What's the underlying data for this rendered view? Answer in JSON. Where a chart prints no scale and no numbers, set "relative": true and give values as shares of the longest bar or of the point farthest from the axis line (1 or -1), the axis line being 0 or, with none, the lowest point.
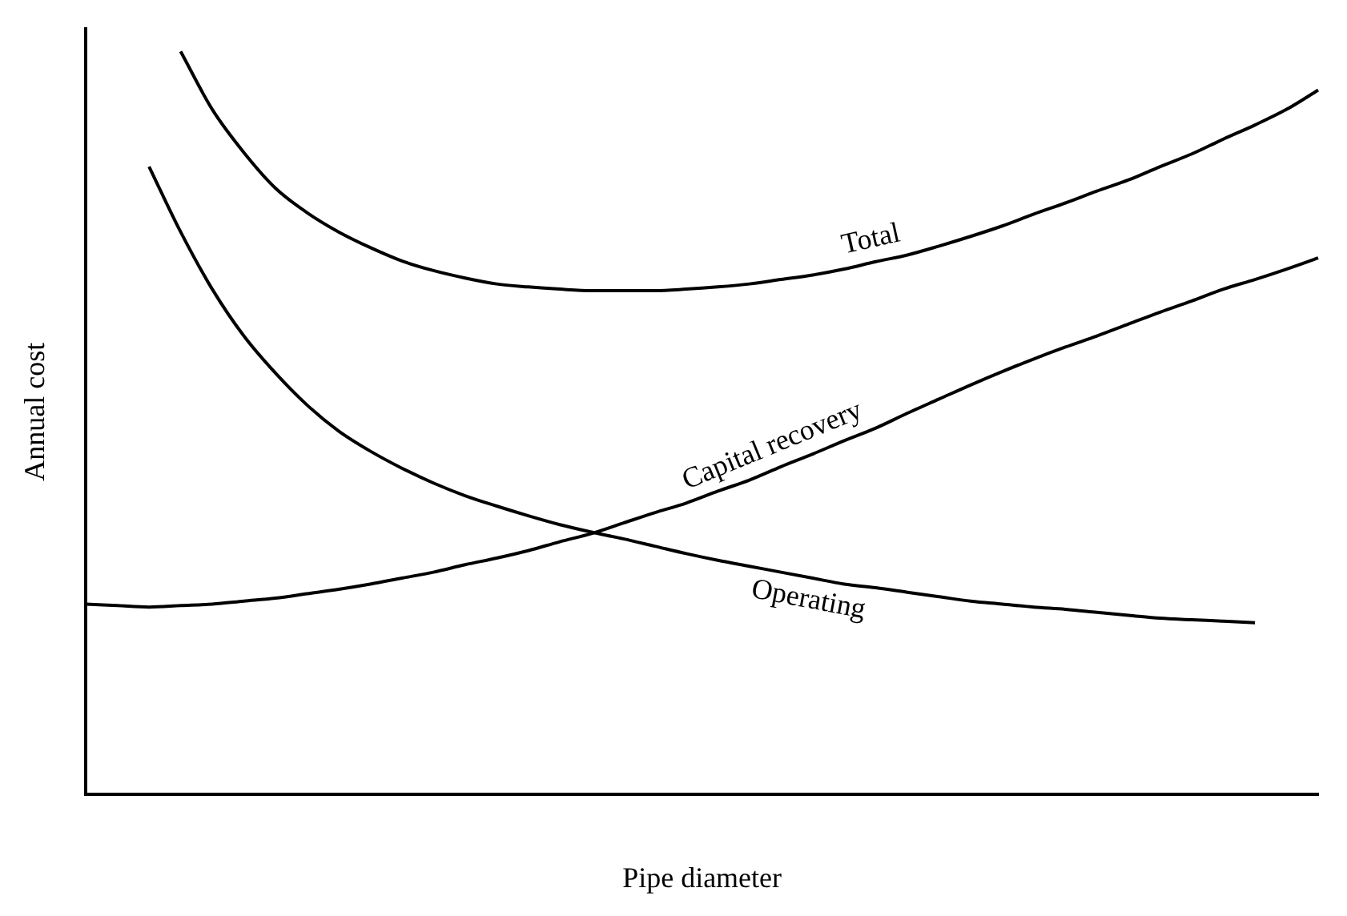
{
  "chart_data": {
    "type": "line",
    "xlabel": "Pipe diameter",
    "ylabel": "Annual cost",
    "relative": true,
    "grid": false,
    "legend": false,
    "marker": "none",
    "line_style": "solid",
    "categories": [
      null,
      null,
      null,
      null,
      null,
      null,
      null,
      null,
      null,
      null,
      null,
      null,
      null,
      null,
      null,
      null,
      null,
      null,
      null,
      null,
      null,
      null,
      null,
      null,
      null,
      null,
      null,
      null,
      null,
      null,
      null,
      null,
      null,
      null,
      null,
      null,
      null,
      null,
      null,
      null
    ],
    "series": [
      {
        "name": "Total",
        "color": "#000000",
        "values": [
          null,
          null,
          null,
          1.0,
          0.922,
          0.864,
          0.816,
          0.783,
          0.757,
          0.736,
          0.718,
          0.705,
          0.695,
          0.687,
          0.683,
          0.68,
          0.678,
          0.678,
          0.678,
          0.68,
          0.683,
          0.687,
          0.693,
          0.699,
          0.707,
          0.717,
          0.726,
          0.738,
          0.751,
          0.765,
          0.781,
          0.796,
          0.812,
          0.827,
          0.845,
          0.862,
          0.882,
          0.901,
          0.922,
          0.948
        ]
      },
      {
        "name": "Capital recovery",
        "color": "#000000",
        "values": [
          0.256,
          0.254,
          0.252,
          0.254,
          0.256,
          0.26,
          0.264,
          0.27,
          0.276,
          0.283,
          0.291,
          0.299,
          0.309,
          0.318,
          0.328,
          0.34,
          0.351,
          0.365,
          0.379,
          0.392,
          0.408,
          0.423,
          0.441,
          0.458,
          0.476,
          0.493,
          0.513,
          0.532,
          0.551,
          0.569,
          0.586,
          0.602,
          0.617,
          0.633,
          0.649,
          0.664,
          0.68,
          0.693,
          0.707,
          0.722
        ]
      },
      {
        "name": "Operating",
        "color": "#000000",
        "values": [
          null,
          null,
          0.845,
          0.757,
          0.68,
          0.617,
          0.567,
          0.524,
          0.489,
          0.462,
          0.439,
          0.419,
          0.402,
          0.388,
          0.375,
          0.363,
          0.353,
          0.344,
          0.334,
          0.324,
          0.315,
          0.307,
          0.299,
          0.291,
          0.283,
          0.278,
          0.272,
          0.266,
          0.26,
          0.256,
          0.252,
          0.249,
          0.245,
          0.241,
          0.237,
          0.235,
          0.233,
          0.231,
          null,
          null
        ]
      }
    ]
  }
}
